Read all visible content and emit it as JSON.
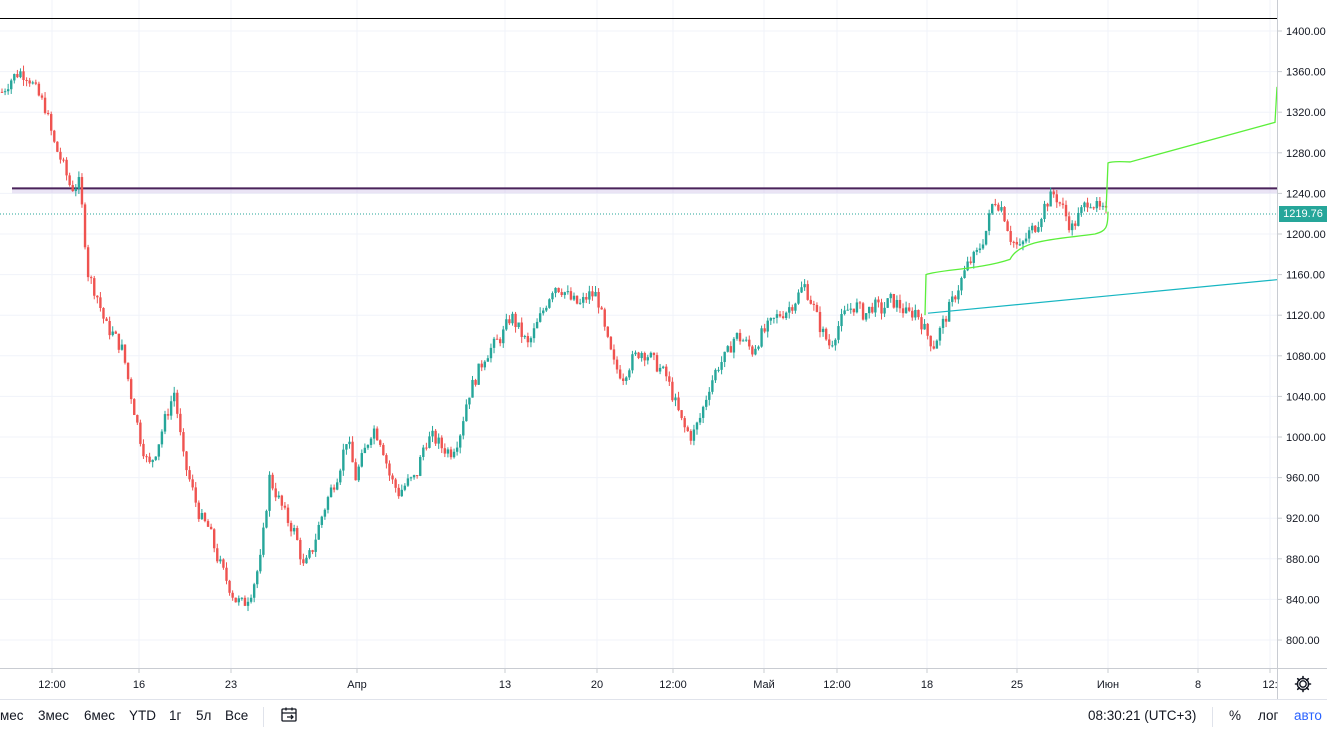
{
  "price_axis": {
    "ticks": [
      "1400.00",
      "1360.00",
      "1320.00",
      "1280.00",
      "1240.00",
      "1200.00",
      "1160.00",
      "1120.00",
      "1080.00",
      "1040.00",
      "1000.00",
      "960.00",
      "920.00",
      "880.00",
      "840.00",
      "800.00"
    ],
    "last_price": "1219.76",
    "last_price_color": "#26a69a"
  },
  "time_axis": {
    "labels": [
      "12:00",
      "16",
      "23",
      "Апр",
      "13",
      "20",
      "12:00",
      "Май",
      "12:00",
      "18",
      "25",
      "Июн",
      "8",
      "12:"
    ]
  },
  "toolbar": {
    "ranges": [
      "мес",
      "3мес",
      "6мес",
      "YTD",
      "1г",
      "5л",
      "Все"
    ],
    "time": "08:30:21 (UTC+3)",
    "percent": "%",
    "log": "лог",
    "auto": "авто"
  },
  "colors": {
    "up": "#26a69a",
    "down": "#ef5350",
    "resistance": "#4a235a",
    "forecast_line": "#5bef3a",
    "trend_line": "#17b6c2",
    "accent": "#2962ff"
  },
  "chart_data": {
    "type": "candlestick",
    "y_range": [
      790,
      1420
    ],
    "current_price": 1219.76,
    "resistance_level": 1245,
    "x_labels": [
      "12:00",
      "16",
      "23",
      "Апр",
      "13",
      "20",
      "12:00",
      "Май",
      "12:00",
      "18",
      "25",
      "Июн",
      "8",
      "12:"
    ],
    "close_path": [
      1340,
      1352,
      1360,
      1356,
      1340,
      1325,
      1290,
      1270,
      1245,
      1250,
      1160,
      1140,
      1110,
      1100,
      1085,
      1040,
      1000,
      970,
      990,
      1020,
      1045,
      980,
      950,
      920,
      910,
      880,
      860,
      840,
      835,
      850,
      880,
      960,
      940,
      920,
      905,
      870,
      890,
      920,
      945,
      965,
      1000,
      960,
      985,
      1010,
      995,
      960,
      945,
      955,
      960,
      995,
      1000,
      990,
      985,
      1000,
      1040,
      1060,
      1080,
      1090,
      1100,
      1120,
      1105,
      1090,
      1110,
      1130,
      1150,
      1145,
      1135,
      1130,
      1140,
      1140,
      1100,
      1070,
      1060,
      1075,
      1085,
      1080,
      1070,
      1060,
      1035,
      1010,
      1000,
      1020,
      1050,
      1070,
      1080,
      1100,
      1095,
      1085,
      1100,
      1110,
      1120,
      1125,
      1135,
      1150,
      1130,
      1105,
      1090,
      1110,
      1125,
      1130,
      1120,
      1130,
      1125,
      1135,
      1130,
      1120,
      1125,
      1105,
      1090,
      1110,
      1130,
      1150,
      1170,
      1180,
      1200,
      1235,
      1225,
      1195,
      1185,
      1200,
      1210,
      1230,
      1240,
      1225,
      1205,
      1220,
      1235,
      1225,
      1220
    ],
    "forecast_upper": [
      [
        1110,
        1270
      ],
      [
        1275,
        1310
      ],
      [
        1277,
        1345
      ]
    ],
    "forecast_lower": [
      [
        925,
        1160
      ],
      [
        1110,
        1205
      ]
    ],
    "trend_line": [
      [
        928,
        1122
      ],
      [
        1277,
        1155
      ]
    ]
  }
}
